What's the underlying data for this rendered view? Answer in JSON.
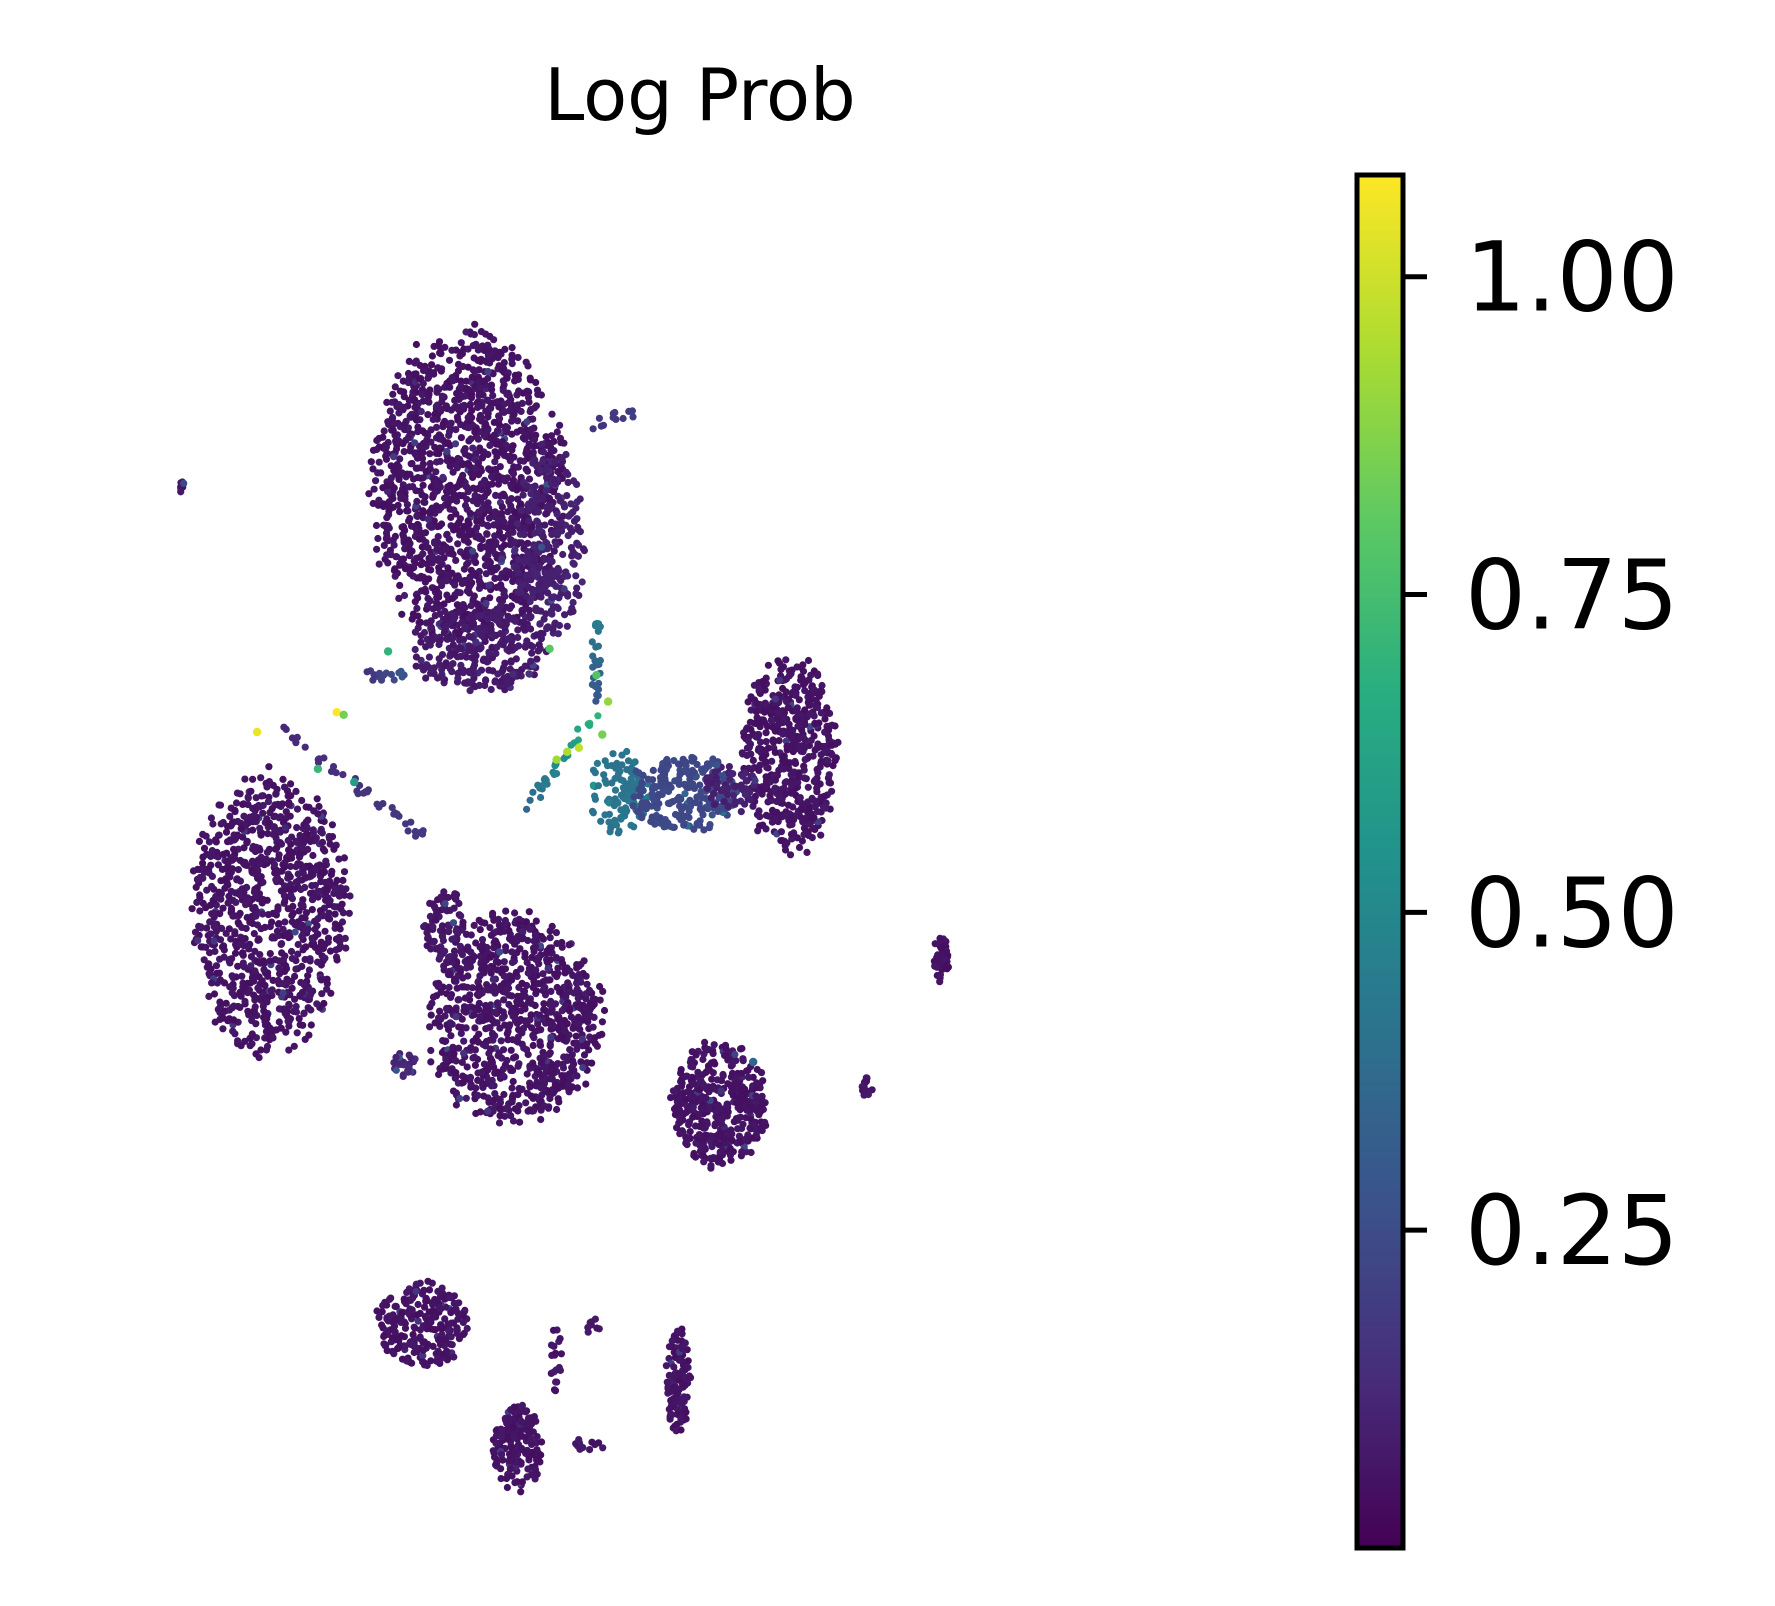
{
  "chart_data": {
    "type": "scatter",
    "title": "Log Prob",
    "xlabel": "",
    "ylabel": "",
    "axes_visible": false,
    "grid": false,
    "colormap": "viridis",
    "colorbar": {
      "vmin": 0.0,
      "vmax": 1.08,
      "ticks": [
        1.0,
        0.75,
        0.5,
        0.25
      ],
      "tick_labels": [
        "1.00",
        "0.75",
        "0.50",
        "0.25"
      ],
      "placement": "right"
    },
    "xlim": [
      0,
      100
    ],
    "ylim": [
      0,
      100
    ],
    "clusters": [
      {
        "cx": 31,
        "cy": 78,
        "rx": 8.6,
        "ry": 13.0,
        "n": 1500,
        "base": 0.04
      },
      {
        "cx": 38,
        "cy": 74,
        "rx": 3.2,
        "ry": 8.0,
        "n": 250,
        "base": 0.08
      },
      {
        "cx": 32,
        "cy": 66,
        "rx": 6.3,
        "ry": 3.5,
        "n": 260,
        "base": 0.06
      },
      {
        "cx": 14,
        "cy": 46,
        "rx": 7.3,
        "ry": 11.2,
        "n": 950,
        "base": 0.04
      },
      {
        "cx": 35,
        "cy": 38,
        "rx": 8.0,
        "ry": 8.5,
        "n": 900,
        "base": 0.04
      },
      {
        "cx": 29,
        "cy": 45,
        "rx": 1.8,
        "ry": 3.5,
        "n": 90,
        "base": 0.05
      },
      {
        "cx": 25.5,
        "cy": 34.5,
        "rx": 1.2,
        "ry": 1.0,
        "n": 25,
        "base": 0.1
      },
      {
        "cx": 58.5,
        "cy": 58,
        "rx": 4.4,
        "ry": 8.0,
        "n": 520,
        "base": 0.04
      },
      {
        "cx": 44,
        "cy": 55,
        "rx": 2.8,
        "ry": 3.5,
        "n": 110,
        "base": 0.4
      },
      {
        "cx": 49.5,
        "cy": 55,
        "rx": 5.0,
        "ry": 3.3,
        "n": 240,
        "base": 0.22
      },
      {
        "cx": 53.5,
        "cy": 55.5,
        "rx": 2.5,
        "ry": 2.0,
        "n": 60,
        "base": 0.08
      },
      {
        "cx": 52.5,
        "cy": 31.5,
        "rx": 4.3,
        "ry": 5.0,
        "n": 420,
        "base": 0.04
      },
      {
        "cx": 27.2,
        "cy": 14.8,
        "rx": 4.3,
        "ry": 3.4,
        "n": 230,
        "base": 0.04
      },
      {
        "cx": 35.2,
        "cy": 5.5,
        "rx": 2.3,
        "ry": 3.6,
        "n": 170,
        "base": 0.04
      },
      {
        "cx": 49.0,
        "cy": 10.5,
        "rx": 1.1,
        "ry": 4.4,
        "n": 110,
        "base": 0.04
      },
      {
        "cx": 71.5,
        "cy": 42.5,
        "rx": 0.8,
        "ry": 1.8,
        "n": 45,
        "base": 0.04
      },
      {
        "cx": 65.2,
        "cy": 32.8,
        "rx": 0.6,
        "ry": 0.9,
        "n": 15,
        "base": 0.05
      },
      {
        "cx": 6.5,
        "cy": 78.3,
        "rx": 0.6,
        "ry": 0.5,
        "n": 10,
        "base": 0.05
      },
      {
        "cx": 38.5,
        "cy": 12.5,
        "rx": 0.6,
        "ry": 3.2,
        "n": 20,
        "base": 0.05
      },
      {
        "cx": 41.7,
        "cy": 14.8,
        "rx": 0.7,
        "ry": 0.9,
        "n": 8,
        "base": 0.05
      },
      {
        "cx": 41.5,
        "cy": 5.7,
        "rx": 1.4,
        "ry": 0.6,
        "n": 12,
        "base": 0.05
      }
    ],
    "bridges": [
      {
        "from": [
          15,
          60
        ],
        "to": [
          27,
          52
        ],
        "n": 40,
        "v0": 0.12,
        "v1": 0.18
      },
      {
        "from": [
          36,
          54
        ],
        "to": [
          42,
          61
        ],
        "n": 30,
        "v0": 0.35,
        "v1": 0.7
      },
      {
        "from": [
          42,
          62
        ],
        "to": [
          42,
          68
        ],
        "n": 25,
        "v0": 0.28,
        "v1": 0.45
      },
      {
        "from": [
          22,
          64
        ],
        "to": [
          26,
          64
        ],
        "n": 15,
        "v0": 0.15,
        "v1": 0.3
      },
      {
        "from": [
          42,
          83
        ],
        "to": [
          45,
          84
        ],
        "n": 12,
        "v0": 0.15,
        "v1": 0.2
      }
    ],
    "highlights": [
      {
        "x": 13.0,
        "y": 59.7,
        "v": 1.05
      },
      {
        "x": 19.8,
        "y": 61.2,
        "v": 1.08
      },
      {
        "x": 20.4,
        "y": 61.0,
        "v": 0.85
      },
      {
        "x": 18.2,
        "y": 56.9,
        "v": 0.72
      },
      {
        "x": 21.3,
        "y": 55.9,
        "v": 0.6
      },
      {
        "x": 38.0,
        "y": 66.0,
        "v": 0.8
      },
      {
        "x": 24.2,
        "y": 65.8,
        "v": 0.7
      },
      {
        "x": 39.5,
        "y": 58.2,
        "v": 0.95
      },
      {
        "x": 40.5,
        "y": 58.5,
        "v": 0.98
      },
      {
        "x": 38.6,
        "y": 57.6,
        "v": 0.92
      },
      {
        "x": 42.5,
        "y": 59.5,
        "v": 0.85
      },
      {
        "x": 43.0,
        "y": 62.0,
        "v": 0.9
      },
      {
        "x": 42.0,
        "y": 64.0,
        "v": 0.78
      },
      {
        "x": 55.4,
        "y": 34.7,
        "v": 0.35
      }
    ]
  }
}
